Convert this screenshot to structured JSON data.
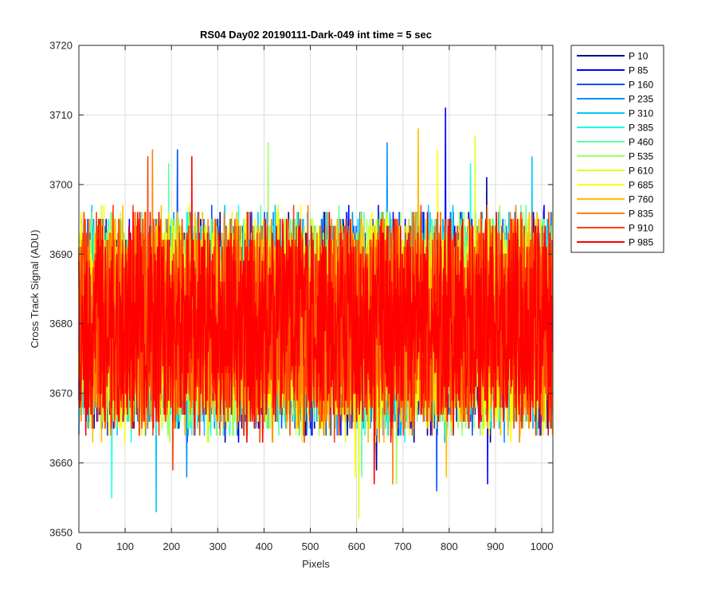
{
  "chart_data": {
    "type": "line",
    "title": "RS04 Day02 20190111-Dark-049 int time = 5 sec",
    "xlabel": "Pixels",
    "ylabel": "Cross Track Signal (ADU)",
    "xlim": [
      0,
      1024
    ],
    "ylim": [
      3650,
      3720
    ],
    "xticks": [
      0,
      100,
      200,
      300,
      400,
      500,
      600,
      700,
      800,
      900,
      1000
    ],
    "yticks": [
      3650,
      3660,
      3670,
      3680,
      3690,
      3700,
      3710,
      3720
    ],
    "grid": true,
    "legend_position": "outside-top-right",
    "noise": {
      "mean": 3680,
      "typical_min": 3660,
      "typical_max": 3700,
      "samples": 1024
    },
    "series": [
      {
        "name": "P 10",
        "color": "#00008f",
        "peak": 3701,
        "trough": 3659
      },
      {
        "name": "P 85",
        "color": "#0000ff",
        "peak": 3711,
        "trough": 3657
      },
      {
        "name": "P 160",
        "color": "#0050ff",
        "peak": 3705,
        "trough": 3656
      },
      {
        "name": "P 235",
        "color": "#0090ff",
        "peak": 3706,
        "trough": 3658
      },
      {
        "name": "P 310",
        "color": "#00c8ff",
        "peak": 3704,
        "trough": 3653
      },
      {
        "name": "P 385",
        "color": "#20ffdf",
        "peak": 3703,
        "trough": 3655
      },
      {
        "name": "P 460",
        "color": "#60ffa0",
        "peak": 3703,
        "trough": 3658
      },
      {
        "name": "P 535",
        "color": "#a0ff60",
        "peak": 3706,
        "trough": 3657
      },
      {
        "name": "P 610",
        "color": "#dfff20",
        "peak": 3707,
        "trough": 3652
      },
      {
        "name": "P 685",
        "color": "#ffff00",
        "peak": 3705,
        "trough": 3658
      },
      {
        "name": "P 760",
        "color": "#ffbf00",
        "peak": 3708,
        "trough": 3658
      },
      {
        "name": "P 835",
        "color": "#ff8000",
        "peak": 3705,
        "trough": 3657
      },
      {
        "name": "P 910",
        "color": "#ff4000",
        "peak": 3704,
        "trough": 3659
      },
      {
        "name": "P 985",
        "color": "#ff0000",
        "peak": 3704,
        "trough": 3657
      }
    ]
  }
}
